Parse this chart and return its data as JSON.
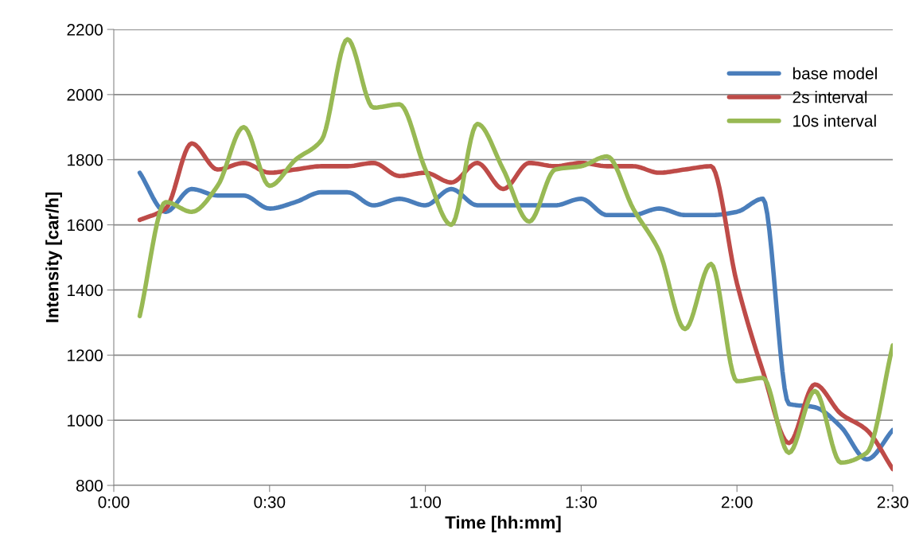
{
  "chart_data": {
    "type": "line",
    "xlabel": "Time [hh:mm]",
    "ylabel": "Intensity [car/h]",
    "x": [
      0.0833,
      0.1667,
      0.25,
      0.3333,
      0.4167,
      0.5,
      0.5833,
      0.6667,
      0.75,
      0.8333,
      0.9167,
      1.0,
      1.0833,
      1.1667,
      1.25,
      1.3333,
      1.4167,
      1.5,
      1.5833,
      1.6667,
      1.75,
      1.8333,
      1.9167,
      2.0,
      2.0833,
      2.1667,
      2.25,
      2.3333,
      2.4167,
      2.5
    ],
    "series": [
      {
        "name": "base model",
        "color": "#4a7ebb",
        "values": [
          1760,
          1640,
          1710,
          1690,
          1690,
          1650,
          1670,
          1700,
          1700,
          1660,
          1680,
          1660,
          1710,
          1660,
          1660,
          1660,
          1660,
          1680,
          1630,
          1630,
          1650,
          1630,
          1630,
          1640,
          1680,
          1050,
          1040,
          980,
          880,
          970
        ]
      },
      {
        "name": "2s interval",
        "color": "#be4b48",
        "values": [
          1615,
          1650,
          1850,
          1770,
          1790,
          1760,
          1770,
          1780,
          1780,
          1790,
          1750,
          1760,
          1730,
          1790,
          1710,
          1790,
          1780,
          1790,
          1780,
          1780,
          1760,
          1770,
          1780,
          1420,
          1150,
          930,
          1110,
          1020,
          970,
          850
        ]
      },
      {
        "name": "10s interval",
        "color": "#98b954",
        "values": [
          1320,
          1670,
          1640,
          1720,
          1900,
          1720,
          1800,
          1860,
          2170,
          1960,
          1970,
          1770,
          1600,
          1910,
          1770,
          1610,
          1770,
          1780,
          1810,
          1650,
          1520,
          1280,
          1480,
          1120,
          1130,
          900,
          1090,
          870,
          900,
          1230
        ]
      }
    ],
    "xlim": [
      0,
      2.5
    ],
    "xticks": [
      {
        "value": 0,
        "label": "0:00"
      },
      {
        "value": 0.5,
        "label": "0:30"
      },
      {
        "value": 1,
        "label": "1:00"
      },
      {
        "value": 1.5,
        "label": "1:30"
      },
      {
        "value": 2,
        "label": "2:00"
      },
      {
        "value": 2.5,
        "label": "2:30"
      }
    ],
    "ylim": [
      800,
      2200
    ],
    "yticks": [
      800,
      1000,
      1200,
      1400,
      1600,
      1800,
      2000,
      2200
    ],
    "grid": "y",
    "legend": "top right",
    "marker": "none",
    "line_style": "solid"
  }
}
